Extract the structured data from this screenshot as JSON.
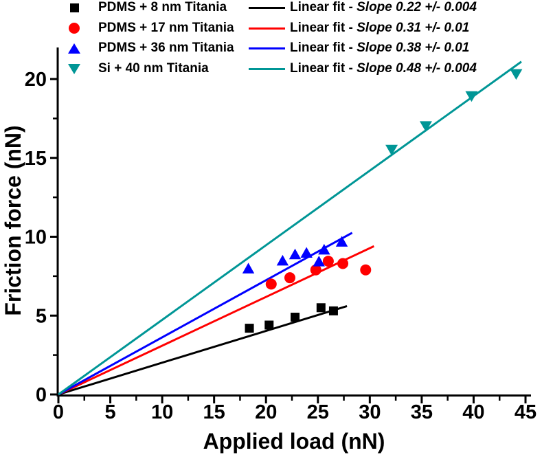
{
  "chart_data": {
    "type": "scatter",
    "title": "",
    "xlabel": "Applied load (nN)",
    "ylabel": "Friction force (nN)",
    "xlim": [
      0,
      45
    ],
    "ylim": [
      0,
      22
    ],
    "x_major_ticks": [
      0,
      5,
      10,
      15,
      20,
      25,
      30,
      35,
      40,
      45
    ],
    "y_major_ticks": [
      0,
      5,
      10,
      15,
      20
    ],
    "x_minor_step": 2.5,
    "y_minor_step": 2.5,
    "grid": "off",
    "legend_position": "top",
    "series": [
      {
        "label": "PDMS + 8 nm Titania",
        "marker": "square",
        "color": "#000000",
        "points": [
          [
            18.4,
            4.2
          ],
          [
            20.3,
            4.4
          ],
          [
            22.8,
            4.9
          ],
          [
            25.3,
            5.5
          ],
          [
            26.5,
            5.3
          ]
        ],
        "fit": {
          "prefix": "Linear fit - ",
          "slope_text": "Slope 0.22 +/- 0.004",
          "slope": 0.22,
          "slope_error": 0.004,
          "line": [
            [
              0,
              0
            ],
            [
              27.8,
              5.6
            ]
          ]
        }
      },
      {
        "label": "PDMS + 17 nm Titania",
        "marker": "circle",
        "color": "#FF0000",
        "points": [
          [
            20.5,
            7.0
          ],
          [
            22.3,
            7.4
          ],
          [
            24.8,
            7.9
          ],
          [
            26.0,
            8.45
          ],
          [
            27.4,
            8.3
          ],
          [
            29.6,
            7.9
          ]
        ],
        "fit": {
          "prefix": "Linear fit - ",
          "slope_text": "Slope 0.31 +/- 0.01",
          "slope": 0.31,
          "slope_error": 0.01,
          "line": [
            [
              0,
              0
            ],
            [
              30.4,
              9.4
            ]
          ]
        }
      },
      {
        "label": "PDMS + 36 nm Titania",
        "marker": "triangle-up",
        "color": "#0000FF",
        "points": [
          [
            18.3,
            8.0
          ],
          [
            21.6,
            8.5
          ],
          [
            22.8,
            8.9
          ],
          [
            23.9,
            9.0
          ],
          [
            25.1,
            8.45
          ],
          [
            25.6,
            9.2
          ],
          [
            27.3,
            9.7
          ]
        ],
        "fit": {
          "prefix": "Linear fit - ",
          "slope_text": "Slope 0.38 +/- 0.01",
          "slope": 0.38,
          "slope_error": 0.01,
          "line": [
            [
              0,
              0
            ],
            [
              28.3,
              10.25
            ]
          ]
        }
      },
      {
        "label": "Si + 40 nm Titania",
        "marker": "triangle-down",
        "color": "#009696",
        "points": [
          [
            32.1,
            15.5
          ],
          [
            35.4,
            17.0
          ],
          [
            39.8,
            18.9
          ],
          [
            44.1,
            20.3
          ]
        ],
        "fit": {
          "prefix": "Linear fit - ",
          "slope_text": "Slope 0.48 +/- 0.004",
          "slope": 0.48,
          "slope_error": 0.004,
          "line": [
            [
              0,
              0
            ],
            [
              44.6,
              21.1
            ]
          ]
        }
      }
    ]
  }
}
